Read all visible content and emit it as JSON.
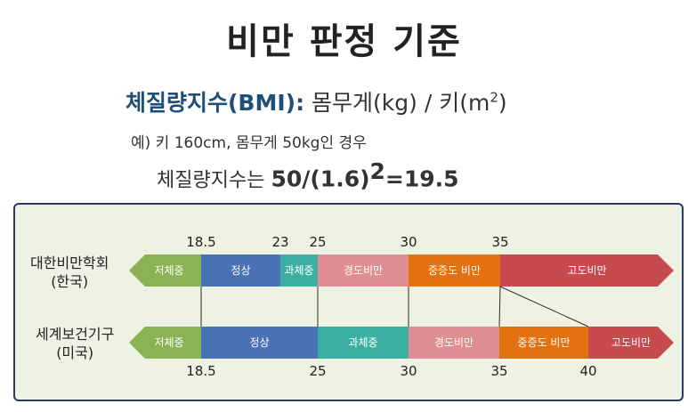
{
  "title": "비만 판정 기준",
  "formula": {
    "term": "체질량지수(BMI)",
    "colon": ":",
    "expression": "몸무게(kg) / 키(m",
    "exponent": "2",
    "close": ")"
  },
  "example": "예) 키 160cm, 몸무게 50kg인 경우",
  "calculation": {
    "prefix": "체질량지수는",
    "value": "50/(1.6)",
    "exponent": "2",
    "result": "=19.5"
  },
  "classification": {
    "korea": {
      "label_line1": "대한비만학회",
      "label_line2": "(한국)",
      "cutoffs": [
        "18.5",
        "23",
        "25",
        "30",
        "35"
      ],
      "segments": [
        {
          "label": "저체중",
          "color": "#8bb356"
        },
        {
          "label": "정상",
          "color": "#4a73b5"
        },
        {
          "label": "과체중",
          "color": "#3bb0a2"
        },
        {
          "label": "경도비만",
          "color": "#df8f93"
        },
        {
          "label": "중증도 비만",
          "color": "#e3710f"
        },
        {
          "label": "고도비만",
          "color": "#c74a4f"
        }
      ]
    },
    "who": {
      "label_line1": "세계보건기구",
      "label_line2": "(미국)",
      "cutoffs": [
        "18.5",
        "25",
        "30",
        "35",
        "40"
      ],
      "segments": [
        {
          "label": "저체중",
          "color": "#8bb356"
        },
        {
          "label": "정상",
          "color": "#4a73b5"
        },
        {
          "label": "과체중",
          "color": "#3bb0a2"
        },
        {
          "label": "경도비만",
          "color": "#df8f93"
        },
        {
          "label": "중증도 비만",
          "color": "#e3710f"
        },
        {
          "label": "고도비만",
          "color": "#c74a4f"
        }
      ]
    }
  }
}
